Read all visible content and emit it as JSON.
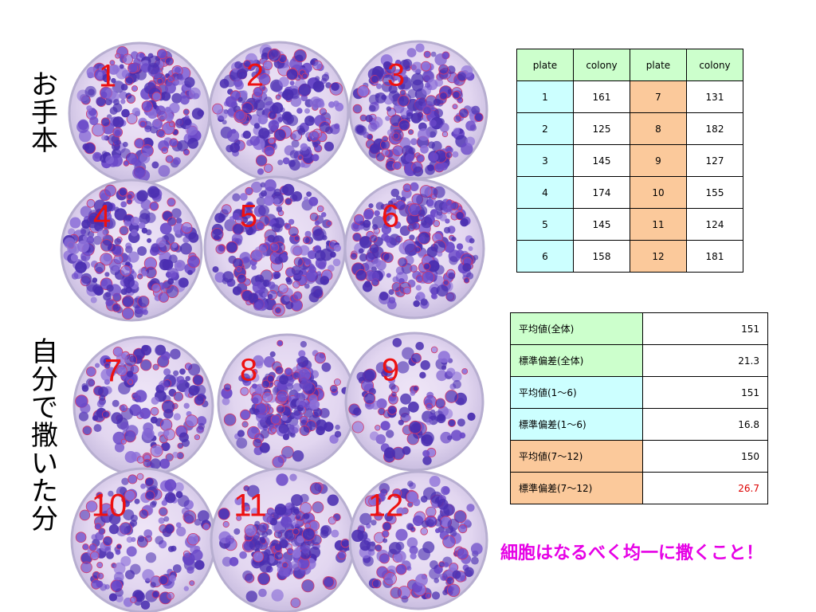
{
  "side_labels": {
    "top": [
      "お",
      "手",
      "本"
    ],
    "bottom": [
      "自",
      "分",
      "で",
      "撒",
      "い",
      "た",
      "分"
    ]
  },
  "plates": [
    {
      "number": "1",
      "group": "sample",
      "density": "high"
    },
    {
      "number": "2",
      "group": "sample",
      "density": "high"
    },
    {
      "number": "3",
      "group": "sample",
      "density": "high"
    },
    {
      "number": "4",
      "group": "sample",
      "density": "high"
    },
    {
      "number": "5",
      "group": "sample",
      "density": "high"
    },
    {
      "number": "6",
      "group": "sample",
      "density": "high"
    },
    {
      "number": "7",
      "group": "self",
      "density": "uneven"
    },
    {
      "number": "8",
      "group": "self",
      "density": "clustered"
    },
    {
      "number": "9",
      "group": "self",
      "density": "sparse"
    },
    {
      "number": "10",
      "group": "self",
      "density": "uneven"
    },
    {
      "number": "11",
      "group": "self",
      "density": "clustered"
    },
    {
      "number": "12",
      "group": "self",
      "density": "uneven"
    }
  ],
  "colors": {
    "plate_number": "#ee1111",
    "colony": "#5533bb",
    "header_fill": "#ccffcc",
    "blue_fill": "#ccffff",
    "orange_fill": "#fbc99b",
    "highlight_value": "#dd0000",
    "conclusion": "#e600e6"
  },
  "counts_table": {
    "headers": [
      "plate",
      "colony",
      "plate",
      "colony"
    ],
    "rows": [
      {
        "plate_a": "1",
        "colony_a": "161",
        "plate_b": "7",
        "colony_b": "131"
      },
      {
        "plate_a": "2",
        "colony_a": "125",
        "plate_b": "8",
        "colony_b": "182"
      },
      {
        "plate_a": "3",
        "colony_a": "145",
        "plate_b": "9",
        "colony_b": "127"
      },
      {
        "plate_a": "4",
        "colony_a": "174",
        "plate_b": "10",
        "colony_b": "155"
      },
      {
        "plate_a": "5",
        "colony_a": "145",
        "plate_b": "11",
        "colony_b": "124"
      },
      {
        "plate_a": "6",
        "colony_a": "158",
        "plate_b": "12",
        "colony_b": "181"
      }
    ]
  },
  "stats_table": {
    "rows": [
      {
        "label": "平均値(全体)",
        "value": "151"
      },
      {
        "label": "標準偏差(全体)",
        "value": "21.3"
      },
      {
        "label": "平均値(1〜6)",
        "value": "151"
      },
      {
        "label": "標準偏差(1〜6)",
        "value": "16.8"
      },
      {
        "label": "平均値(7〜12)",
        "value": "150"
      },
      {
        "label": "標準偏差(7〜12)",
        "value": "26.7"
      }
    ]
  },
  "conclusion": "細胞はなるべく均一に撒くこと！"
}
